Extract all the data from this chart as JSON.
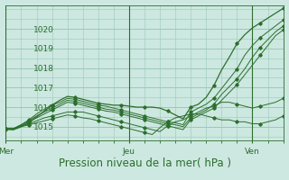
{
  "bg_color": "#cce8e0",
  "line_color": "#2d6e2d",
  "grid_color": "#9dc8b8",
  "xlabel": "Pression niveau de la mer( hPa )",
  "xlabel_fontsize": 8.5,
  "tick_label_color": "#2d6e2d",
  "tick_fontsize": 6.5,
  "ylim": [
    1014.3,
    1021.2
  ],
  "yticks": [
    1015,
    1016,
    1017,
    1018,
    1019,
    1020
  ],
  "day_labels": [
    "Mer",
    "Jeu",
    "Ven"
  ],
  "day_positions": [
    0,
    24,
    48
  ],
  "total_hours": 54,
  "series": [
    [
      1014.9,
      1014.85,
      1015.0,
      1015.2,
      1015.5,
      1015.8,
      1016.1,
      1016.35,
      1016.55,
      1016.5,
      1016.4,
      1016.3,
      1016.2,
      1016.15,
      1016.1,
      1016.1,
      1016.05,
      1016.0,
      1016.0,
      1016.0,
      1015.95,
      1015.8,
      1015.6,
      1015.4,
      1016.0,
      1016.15,
      1016.5,
      1017.1,
      1017.9,
      1018.55,
      1019.25,
      1019.7,
      1020.05,
      1020.3,
      1020.55,
      1020.8,
      1021.05
    ],
    [
      1014.9,
      1014.9,
      1015.1,
      1015.35,
      1015.65,
      1015.9,
      1016.1,
      1016.25,
      1016.45,
      1016.4,
      1016.3,
      1016.2,
      1016.1,
      1016.05,
      1015.95,
      1015.85,
      1015.75,
      1015.65,
      1015.55,
      1015.45,
      1015.35,
      1015.25,
      1015.2,
      1015.1,
      1015.75,
      1015.95,
      1016.15,
      1016.45,
      1016.95,
      1017.45,
      1017.95,
      1018.65,
      1019.15,
      1019.55,
      1019.85,
      1020.15,
      1020.45
    ],
    [
      1014.9,
      1014.9,
      1015.1,
      1015.3,
      1015.55,
      1015.75,
      1015.95,
      1016.15,
      1016.35,
      1016.3,
      1016.2,
      1016.1,
      1016.0,
      1015.9,
      1015.85,
      1015.75,
      1015.65,
      1015.55,
      1015.45,
      1015.35,
      1015.25,
      1015.15,
      1015.1,
      1015.0,
      1015.45,
      1015.65,
      1015.85,
      1016.15,
      1016.65,
      1017.05,
      1017.45,
      1017.95,
      1018.55,
      1019.05,
      1019.45,
      1019.85,
      1020.15
    ],
    [
      1014.9,
      1014.9,
      1015.05,
      1015.25,
      1015.45,
      1015.65,
      1015.85,
      1016.05,
      1016.25,
      1016.2,
      1016.1,
      1016.0,
      1015.9,
      1015.8,
      1015.75,
      1015.65,
      1015.55,
      1015.45,
      1015.35,
      1015.25,
      1015.15,
      1015.05,
      1014.95,
      1014.85,
      1015.35,
      1015.55,
      1015.75,
      1015.95,
      1016.35,
      1016.75,
      1017.15,
      1017.65,
      1018.15,
      1018.65,
      1019.15,
      1019.65,
      1019.95
    ],
    [
      1014.9,
      1014.9,
      1015.05,
      1015.15,
      1015.3,
      1015.45,
      1015.55,
      1015.65,
      1015.75,
      1015.75,
      1015.75,
      1015.65,
      1015.55,
      1015.45,
      1015.35,
      1015.25,
      1015.15,
      1015.05,
      1014.95,
      1014.85,
      1014.75,
      1015.05,
      1015.25,
      1015.35,
      1015.55,
      1015.75,
      1015.95,
      1016.05,
      1016.25,
      1016.25,
      1016.15,
      1016.05,
      1015.95,
      1016.05,
      1016.15,
      1016.25,
      1016.45
    ],
    [
      1014.85,
      1014.85,
      1015.0,
      1015.1,
      1015.2,
      1015.3,
      1015.4,
      1015.5,
      1015.6,
      1015.55,
      1015.45,
      1015.4,
      1015.3,
      1015.2,
      1015.1,
      1015.0,
      1014.9,
      1014.8,
      1014.7,
      1014.6,
      1014.95,
      1015.25,
      1015.45,
      1015.55,
      1015.65,
      1015.65,
      1015.55,
      1015.45,
      1015.35,
      1015.35,
      1015.25,
      1015.25,
      1015.15,
      1015.15,
      1015.25,
      1015.35,
      1015.55
    ]
  ]
}
